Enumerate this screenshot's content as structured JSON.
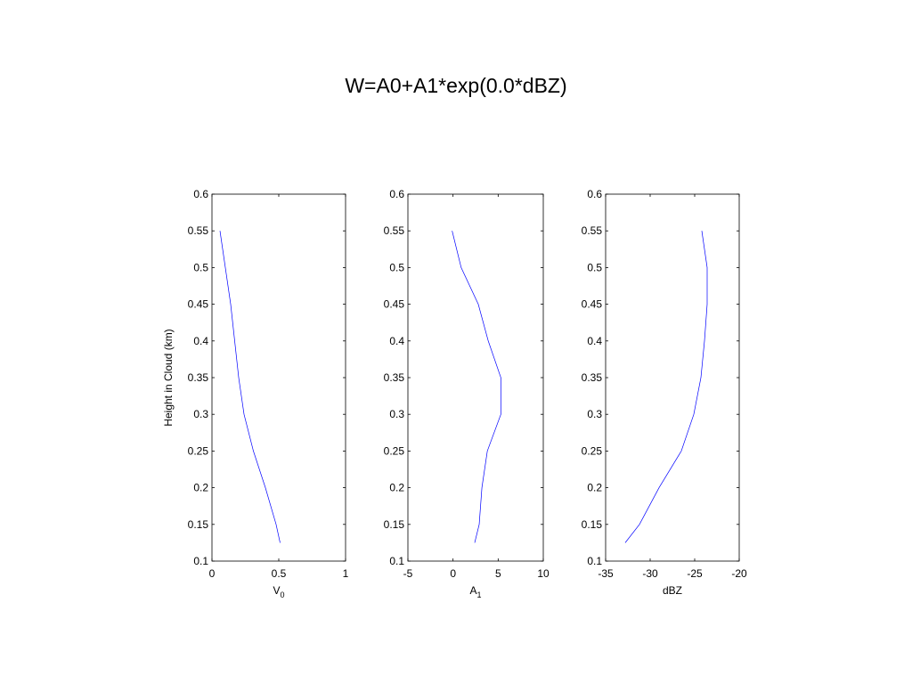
{
  "title": "W=A0+A1*exp(0.0*dBZ)",
  "chart_data": [
    {
      "type": "line",
      "xlabel": "V",
      "xlabel_sub": "0",
      "ylabel": "Height in Cloud (km)",
      "x": [
        0.06,
        0.1,
        0.14,
        0.17,
        0.2,
        0.24,
        0.31,
        0.4,
        0.48,
        0.51
      ],
      "values": [
        0.55,
        0.5,
        0.45,
        0.4,
        0.35,
        0.3,
        0.25,
        0.2,
        0.15,
        0.125
      ],
      "color": "#0000ff",
      "xlim": [
        0,
        1
      ],
      "xticks": [
        0,
        0.5,
        1
      ],
      "ylim": [
        0.1,
        0.6
      ],
      "yticks": [
        0.1,
        0.15,
        0.2,
        0.25,
        0.3,
        0.35,
        0.4,
        0.45,
        0.5,
        0.55,
        0.6
      ]
    },
    {
      "type": "line",
      "xlabel": "A",
      "xlabel_sub": "1",
      "x": [
        -0.1,
        0.9,
        2.8,
        3.9,
        5.3,
        5.3,
        3.8,
        3.2,
        2.9,
        2.4
      ],
      "values": [
        0.55,
        0.5,
        0.45,
        0.4,
        0.35,
        0.3,
        0.25,
        0.2,
        0.15,
        0.125
      ],
      "color": "#0000ff",
      "xlim": [
        -5,
        10
      ],
      "xticks": [
        -5,
        0,
        5,
        10
      ],
      "ylim": [
        0.1,
        0.6
      ],
      "yticks": [
        0.1,
        0.15,
        0.2,
        0.25,
        0.3,
        0.35,
        0.4,
        0.45,
        0.5,
        0.55,
        0.6
      ]
    },
    {
      "type": "line",
      "xlabel": "dBZ",
      "x": [
        -24.2,
        -23.6,
        -23.6,
        -23.9,
        -24.3,
        -25.1,
        -26.5,
        -29.0,
        -31.2,
        -32.8
      ],
      "values": [
        0.55,
        0.5,
        0.45,
        0.4,
        0.35,
        0.3,
        0.25,
        0.2,
        0.15,
        0.125
      ],
      "color": "#0000ff",
      "xlim": [
        -35,
        -20
      ],
      "xticks": [
        -35,
        -30,
        -25,
        -20
      ],
      "ylim": [
        0.1,
        0.6
      ],
      "yticks": [
        0.1,
        0.15,
        0.2,
        0.25,
        0.3,
        0.35,
        0.4,
        0.45,
        0.5,
        0.55,
        0.6
      ]
    }
  ]
}
